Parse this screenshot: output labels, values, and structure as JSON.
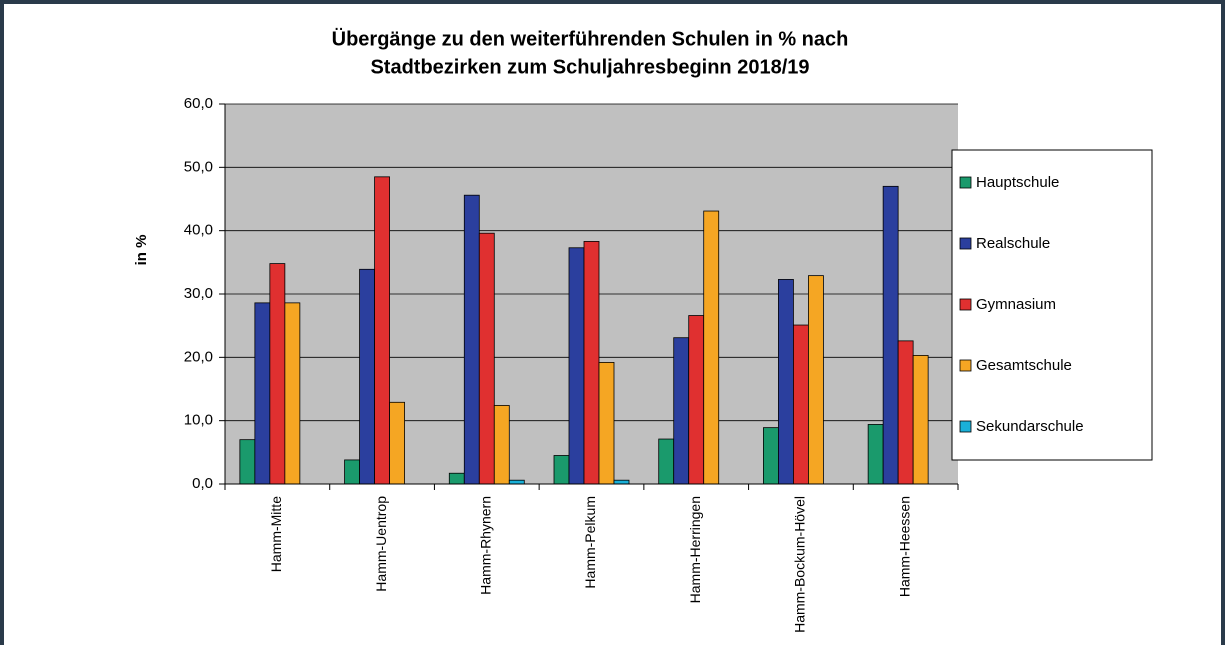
{
  "chart_data": {
    "type": "bar",
    "title": [
      "Übergänge zu den weiterführenden Schulen in % nach",
      "Stadtbezirken zum Schuljahresbeginn 2018/19"
    ],
    "ylabel": "in %",
    "categories": [
      "Hamm-Mitte",
      "Hamm-Uentrop",
      "Hamm-Rhynern",
      "Hamm-Pelkum",
      "Hamm-Herringen",
      "Hamm-Bockum-Hövel",
      "Hamm-Heessen"
    ],
    "series": [
      {
        "name": "Hauptschule",
        "color": "#1a9a6c",
        "values": [
          7.0,
          3.8,
          1.7,
          4.5,
          7.1,
          8.9,
          9.4
        ]
      },
      {
        "name": "Realschule",
        "color": "#2b3f9e",
        "values": [
          28.6,
          33.9,
          45.6,
          37.3,
          23.1,
          32.3,
          47.0
        ]
      },
      {
        "name": "Gymnasium",
        "color": "#e03030",
        "values": [
          34.8,
          48.5,
          39.6,
          38.3,
          26.6,
          25.1,
          22.6
        ]
      },
      {
        "name": "Gesamtschule",
        "color": "#f5a623",
        "values": [
          28.6,
          12.9,
          12.4,
          19.2,
          43.1,
          32.9,
          20.3
        ]
      },
      {
        "name": "Sekundarschule",
        "color": "#1ab0d8",
        "values": [
          0,
          0,
          0.6,
          0.6,
          0,
          0,
          0
        ]
      }
    ],
    "ylim": [
      0,
      60
    ],
    "yticks": [
      {
        "value": 0,
        "label": "0,0"
      },
      {
        "value": 10,
        "label": "10,0"
      },
      {
        "value": 20,
        "label": "20,0"
      },
      {
        "value": 30,
        "label": "30,0"
      },
      {
        "value": 40,
        "label": "40,0"
      },
      {
        "value": 50,
        "label": "50,0"
      },
      {
        "value": 60,
        "label": "60,0"
      }
    ],
    "grid": true,
    "legend": "right"
  }
}
